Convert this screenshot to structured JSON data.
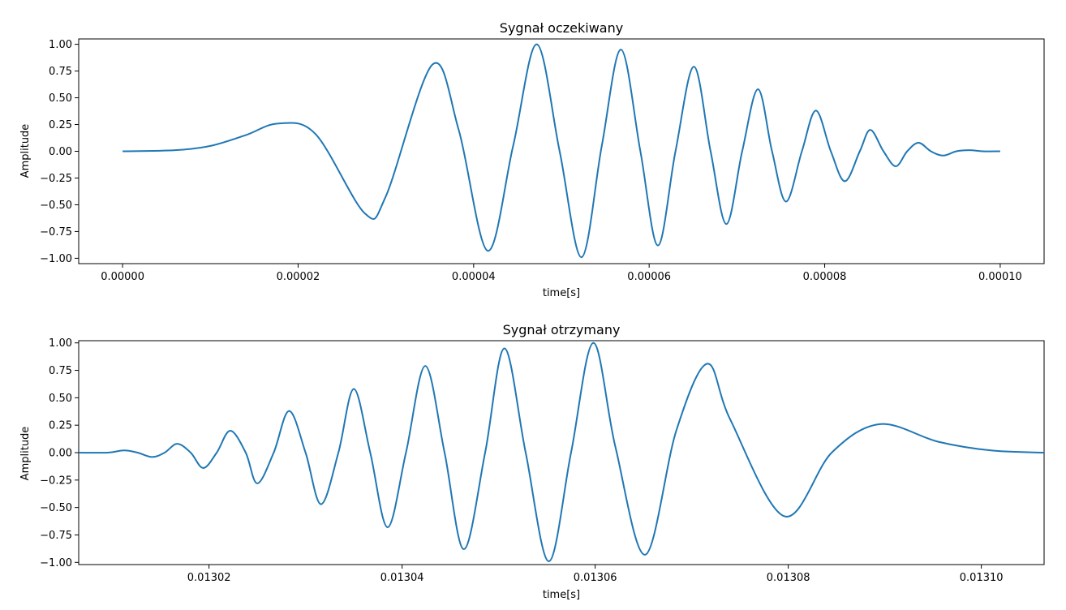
{
  "chart_data": [
    {
      "type": "line",
      "title": "Sygnał oczekiwany",
      "xlabel": "time[s]",
      "ylabel": "Amplitude",
      "xlim": [
        -5e-06,
        0.000105
      ],
      "ylim": [
        -1.05,
        1.05
      ],
      "xticks": [
        0.0,
        2e-05,
        4e-05,
        6e-05,
        8e-05,
        0.0001
      ],
      "xtick_labels": [
        "0.00000",
        "0.00002",
        "0.00004",
        "0.00006",
        "0.00008",
        "0.00010"
      ],
      "yticks": [
        1.0,
        0.75,
        0.5,
        0.25,
        0.0,
        -0.25,
        -0.5,
        -0.75,
        -1.0
      ],
      "ytick_labels": [
        "1.00",
        "0.75",
        "0.50",
        "0.25",
        "0.00",
        "−0.25",
        "−0.50",
        "−0.75",
        "−1.00"
      ],
      "grid": false,
      "color": "#1f77b4",
      "series": [
        {
          "x": [
            0.0,
            6e-06,
            1e-05,
            1.4e-05,
            1.78e-05,
            2.2e-05,
            2.76e-05,
            3e-05,
            3.53e-05,
            3.83e-05,
            4.16e-05,
            4.45e-05,
            4.72e-05,
            4.98e-05,
            5.23e-05,
            5.46e-05,
            5.68e-05,
            5.9e-05,
            6.1e-05,
            6.3e-05,
            6.51e-05,
            6.7e-05,
            6.88e-05,
            7.06e-05,
            7.24e-05,
            7.4e-05,
            7.56e-05,
            7.74e-05,
            7.9e-05,
            8.07e-05,
            8.23e-05,
            8.4e-05,
            8.52e-05,
            8.67e-05,
            8.81e-05,
            8.94e-05,
            9.07e-05,
            9.21e-05,
            9.35e-05,
            9.5e-05,
            9.65e-05,
            9.8e-05,
            0.0001
          ],
          "y": [
            0.0,
            0.01,
            0.05,
            0.15,
            0.26,
            0.16,
            -0.58,
            -0.42,
            0.81,
            0.2,
            -0.93,
            0.05,
            1.0,
            0.0,
            -0.99,
            0.05,
            0.95,
            0.0,
            -0.88,
            0.0,
            0.79,
            0.0,
            -0.68,
            0.0,
            0.58,
            0.0,
            -0.47,
            0.0,
            0.38,
            0.0,
            -0.28,
            0.0,
            0.2,
            0.0,
            -0.14,
            0.0,
            0.08,
            0.0,
            -0.04,
            0.0,
            0.01,
            0.0,
            0.0
          ]
        }
      ]
    },
    {
      "type": "line",
      "title": "Sygnał otrzymany",
      "xlabel": "time[s]",
      "ylabel": "Amplitude",
      "xlim": [
        0.0130065,
        0.0131065
      ],
      "ylim": [
        -1.02,
        1.02
      ],
      "xticks": [
        0.01302,
        0.01304,
        0.01306,
        0.01308,
        0.0131
      ],
      "xtick_labels": [
        "0.01302",
        "0.01304",
        "0.01306",
        "0.01308",
        "0.01310"
      ],
      "yticks": [
        1.0,
        0.75,
        0.5,
        0.25,
        0.0,
        -0.25,
        -0.5,
        -0.75,
        -1.0
      ],
      "ytick_labels": [
        "1.00",
        "0.75",
        "0.50",
        "0.25",
        "0.00",
        "−0.25",
        "−0.50",
        "−0.75",
        "−1.00"
      ],
      "grid": false,
      "color": "#1f77b4",
      "series": [
        {
          "x": [
            0.0130065,
            0.0130095,
            0.0130112,
            0.0130126,
            0.0130141,
            0.0130154,
            0.0130167,
            0.0130181,
            0.0130194,
            0.0130208,
            0.0130222,
            0.0130238,
            0.013025,
            0.0130267,
            0.0130283,
            0.01303,
            0.0130316,
            0.0130334,
            0.013035,
            0.0130367,
            0.0130385,
            0.0130404,
            0.0130424,
            0.0130444,
            0.0130464,
            0.0130486,
            0.0130506,
            0.0130528,
            0.0130552,
            0.0130575,
            0.0130598,
            0.0130621,
            0.0130652,
            0.0130684,
            0.0130716,
            0.013074,
            0.0130796,
            0.0130845,
            0.0130895,
            0.0130955,
            0.013101,
            0.0131065
          ],
          "y": [
            0.0,
            0.0,
            0.02,
            0.0,
            -0.04,
            0.0,
            0.08,
            0.0,
            -0.14,
            0.0,
            0.2,
            0.0,
            -0.28,
            0.0,
            0.38,
            0.0,
            -0.47,
            0.0,
            0.58,
            0.0,
            -0.68,
            0.0,
            0.79,
            0.0,
            -0.88,
            0.0,
            0.95,
            0.0,
            -0.99,
            0.0,
            1.0,
            0.05,
            -0.93,
            0.2,
            0.81,
            0.3,
            -0.58,
            0.0,
            0.26,
            0.1,
            0.02,
            0.0
          ]
        }
      ]
    }
  ]
}
